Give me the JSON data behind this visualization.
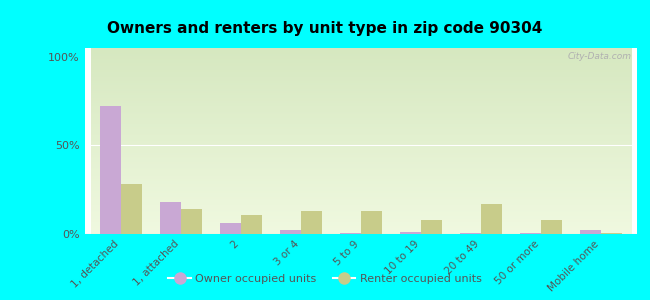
{
  "title": "Owners and renters by unit type in zip code 90304",
  "categories": [
    "1, detached",
    "1, attached",
    "2",
    "3 or 4",
    "5 to 9",
    "10 to 19",
    "20 to 49",
    "50 or more",
    "Mobile home"
  ],
  "owner_values": [
    72,
    18,
    6,
    2,
    0.5,
    1,
    0.3,
    0.3,
    2
  ],
  "renter_values": [
    28,
    14,
    11,
    13,
    13,
    8,
    17,
    8,
    0.5
  ],
  "owner_color": "#c9a8d4",
  "renter_color": "#c8cc8a",
  "outer_bg": "#00ffff",
  "yticks": [
    0,
    50,
    100
  ],
  "ytick_labels": [
    "0%",
    "50%",
    "100%"
  ],
  "ylim": [
    0,
    105
  ],
  "bar_width": 0.35,
  "legend_owner": "Owner occupied units",
  "legend_renter": "Renter occupied units",
  "watermark": "City-Data.com",
  "grad_top": "#d6e8c0",
  "grad_bottom": "#f0f9e0"
}
